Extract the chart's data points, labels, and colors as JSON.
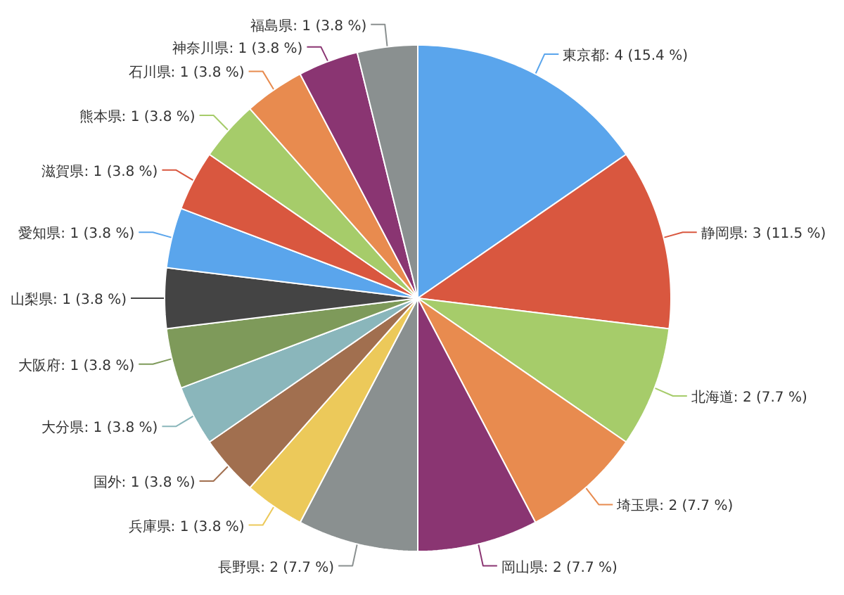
{
  "chart_data": {
    "type": "pie",
    "categories": [
      "東京都",
      "静岡県",
      "北海道",
      "埼玉県",
      "岡山県",
      "長野県",
      "兵庫県",
      "国外",
      "大分県",
      "大阪府",
      "山梨県",
      "愛知県",
      "滋賀県",
      "熊本県",
      "石川県",
      "神奈川県",
      "福島県"
    ],
    "values": [
      4,
      3,
      2,
      2,
      2,
      2,
      1,
      1,
      1,
      1,
      1,
      1,
      1,
      1,
      1,
      1,
      1
    ],
    "colors": [
      "#5aa5ec",
      "#d9573f",
      "#a6cc6a",
      "#e88b4f",
      "#8a3572",
      "#8a9090",
      "#ecc95a",
      "#a16f4f",
      "#8ab6bb",
      "#7e9a5a",
      "#444444",
      "#5aa5ec",
      "#d9573f",
      "#a6cc6a",
      "#e88b4f",
      "#8a3572",
      "#8a9090"
    ],
    "value_labels": [
      ": 4 (15.4 %)",
      ": 3 (11.5 %)",
      ": 2 (7.7 %)",
      ": 2 (7.7 %)",
      ": 2 (7.7 %)",
      ": 2 (7.7 %)",
      ": 1 (3.8 %)",
      ": 1 (3.8 %)",
      ": 1 (3.8 %)",
      ": 1 (3.8 %)",
      ": 1 (3.8 %)",
      ": 1 (3.8 %)",
      ": 1 (3.8 %)",
      ": 1 (3.8 %)",
      ": 1 (3.8 %)",
      ": 1 (3.8 %)",
      ": 1 (3.8 %)"
    ]
  }
}
